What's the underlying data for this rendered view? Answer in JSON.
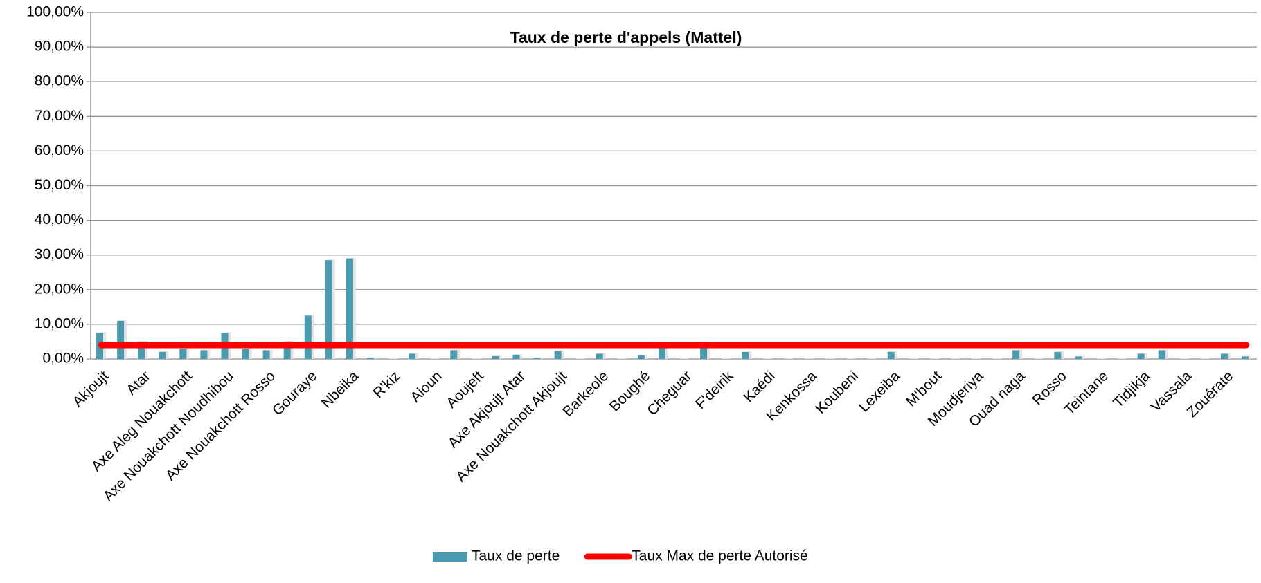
{
  "chart_data": {
    "type": "bar",
    "title": "Taux de perte d'appels (Mattel)",
    "categories": [
      "Akjoujt",
      null,
      "Atar",
      null,
      "Axe Aleg Nouakchott",
      null,
      "Axe Nouakchott Noudhibou",
      null,
      "Axe Nouakchott Rosso",
      null,
      "Gouraye",
      null,
      "Nbeika",
      null,
      "R'kiz",
      null,
      "Aioun",
      null,
      "Aoujeft",
      null,
      "Axe Akjoujt Atar",
      null,
      "Axe Nouakchott Akjoujt",
      null,
      "Barkeole",
      null,
      "Boughé",
      null,
      "Cheguar",
      null,
      "F'deirik",
      null,
      "Kaédi",
      null,
      "Kenkossa",
      null,
      "Koubeni",
      null,
      "Lexeiba",
      null,
      "M'bout",
      null,
      "Moudjeriya",
      null,
      "Ouad naga",
      null,
      "Rosso",
      null,
      "Teintane",
      null,
      "Tidjikja",
      null,
      "Vassala",
      null,
      "Zouérate",
      null
    ],
    "series": [
      {
        "name": "Taux de perte",
        "color": "#4a9bb0",
        "values": [
          7.5,
          11,
          5,
          2,
          3,
          2.5,
          7.5,
          3,
          2.5,
          5,
          12.5,
          28.5,
          29,
          0.3,
          0,
          1.5,
          0,
          2.5,
          0,
          0.8,
          1.2,
          0.3,
          2.3,
          0,
          1.5,
          0,
          1,
          3.5,
          0,
          3.5,
          0,
          2,
          0,
          0,
          0,
          0,
          0,
          0,
          2,
          0,
          0,
          0,
          0,
          0,
          2.5,
          0,
          2,
          0.7,
          0,
          0,
          1.5,
          2.5,
          0,
          0,
          1.5,
          0.7
        ]
      },
      {
        "name": "Taux Max de perte Autorisé",
        "type": "line",
        "color": "#ff0000",
        "values": [
          4,
          4,
          4,
          4,
          4,
          4,
          4,
          4,
          4,
          4,
          4,
          4,
          4,
          4,
          4,
          4,
          4,
          4,
          4,
          4,
          4,
          4,
          4,
          4,
          4,
          4,
          4,
          4,
          4,
          4,
          4,
          4,
          4,
          4,
          4,
          4,
          4,
          4,
          4,
          4,
          4,
          4,
          4,
          4,
          4,
          4,
          4,
          4,
          4,
          4,
          4,
          4,
          4,
          4,
          4,
          4
        ]
      }
    ],
    "ylim": [
      0,
      100
    ],
    "yticks": [
      {
        "value": 0,
        "label": "0,00%"
      },
      {
        "value": 10,
        "label": "10,00%"
      },
      {
        "value": 20,
        "label": "20,00%"
      },
      {
        "value": 30,
        "label": "30,00%"
      },
      {
        "value": 40,
        "label": "40,00%"
      },
      {
        "value": 50,
        "label": "50,00%"
      },
      {
        "value": 60,
        "label": "60,00%"
      },
      {
        "value": 70,
        "label": "70,00%"
      },
      {
        "value": 80,
        "label": "80,00%"
      },
      {
        "value": 90,
        "label": "90,00%"
      },
      {
        "value": 100,
        "label": "100,00%"
      }
    ],
    "grid": true,
    "legend": "bottom"
  }
}
